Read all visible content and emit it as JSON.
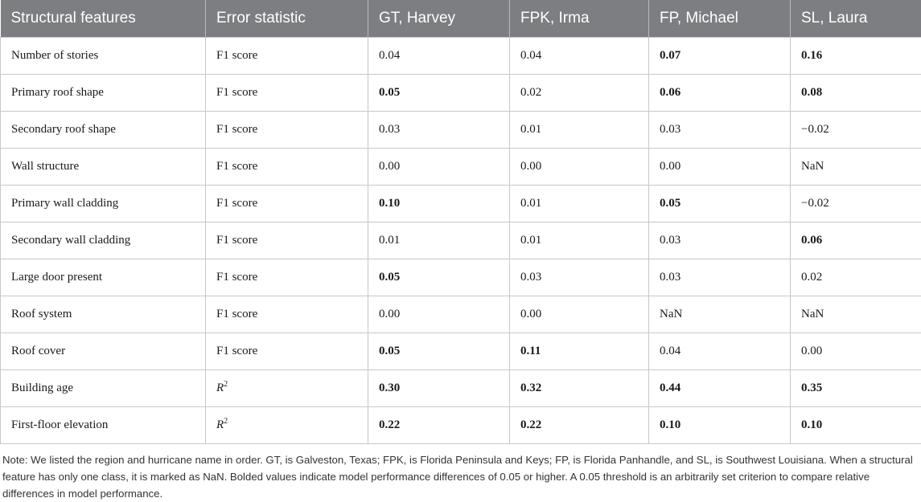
{
  "table": {
    "headers": [
      "Structural features",
      "Error statistic",
      "GT, Harvey",
      "FPK, Irma",
      "FP, Michael",
      "SL, Laura"
    ],
    "rows": [
      {
        "feature": "Number of stories",
        "stat": "F1 score",
        "stat_sup": "",
        "values": [
          "0.04",
          "0.04",
          "0.07",
          "0.16"
        ],
        "bold": [
          false,
          false,
          true,
          true
        ]
      },
      {
        "feature": "Primary roof shape",
        "stat": "F1 score",
        "stat_sup": "",
        "values": [
          "0.05",
          "0.02",
          "0.06",
          "0.08"
        ],
        "bold": [
          true,
          false,
          true,
          true
        ]
      },
      {
        "feature": "Secondary roof shape",
        "stat": "F1 score",
        "stat_sup": "",
        "values": [
          "0.03",
          "0.01",
          "0.03",
          "−0.02"
        ],
        "bold": [
          false,
          false,
          false,
          false
        ]
      },
      {
        "feature": "Wall structure",
        "stat": "F1 score",
        "stat_sup": "",
        "values": [
          "0.00",
          "0.00",
          "0.00",
          "NaN"
        ],
        "bold": [
          false,
          false,
          false,
          false
        ]
      },
      {
        "feature": "Primary wall cladding",
        "stat": "F1 score",
        "stat_sup": "",
        "values": [
          "0.10",
          "0.01",
          "0.05",
          "−0.02"
        ],
        "bold": [
          true,
          false,
          true,
          false
        ]
      },
      {
        "feature": "Secondary wall cladding",
        "stat": "F1 score",
        "stat_sup": "",
        "values": [
          "0.01",
          "0.01",
          "0.03",
          "0.06"
        ],
        "bold": [
          false,
          false,
          false,
          true
        ]
      },
      {
        "feature": "Large door present",
        "stat": "F1 score",
        "stat_sup": "",
        "values": [
          "0.05",
          "0.03",
          "0.03",
          "0.02"
        ],
        "bold": [
          true,
          false,
          false,
          false
        ]
      },
      {
        "feature": "Roof system",
        "stat": "F1 score",
        "stat_sup": "",
        "values": [
          "0.00",
          "0.00",
          "NaN",
          "NaN"
        ],
        "bold": [
          false,
          false,
          false,
          false
        ]
      },
      {
        "feature": "Roof cover",
        "stat": "F1 score",
        "stat_sup": "",
        "values": [
          "0.05",
          "0.11",
          "0.04",
          "0.00"
        ],
        "bold": [
          true,
          true,
          false,
          false
        ]
      },
      {
        "feature": "Building age",
        "stat": "R",
        "stat_sup": "2",
        "values": [
          "0.30",
          "0.32",
          "0.44",
          "0.35"
        ],
        "bold": [
          true,
          true,
          true,
          true
        ]
      },
      {
        "feature": "First-floor elevation",
        "stat": "R",
        "stat_sup": "2",
        "values": [
          "0.22",
          "0.22",
          "0.10",
          "0.10"
        ],
        "bold": [
          true,
          true,
          true,
          true
        ]
      }
    ]
  },
  "note": "Note: We listed the region and hurricane name in order. GT, is Galveston, Texas; FPK, is Florida Peninsula and Keys; FP, is Florida Panhandle, and SL, is Southwest Louisiana. When a structural feature has only one class, it is marked as NaN. Bolded values indicate model performance differences of 0.05 or higher. A 0.05 threshold is an arbitrarily set criterion to compare relative differences in model performance."
}
